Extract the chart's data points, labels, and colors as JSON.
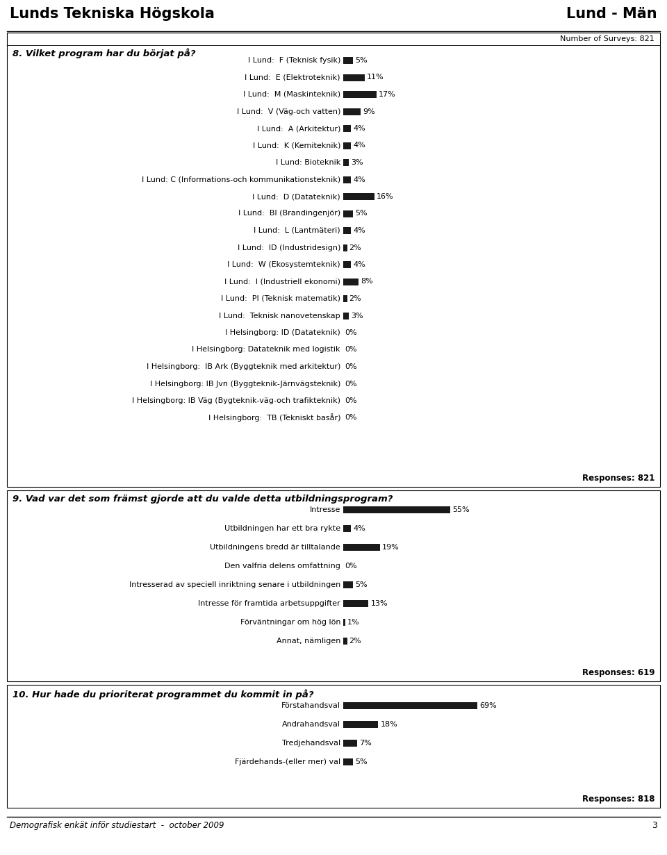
{
  "header_left": "Lunds Tekniska Högskola",
  "header_right": "Lund - Män",
  "footer_text": "Demografisk enkät inför studiestart  -  october 2009",
  "footer_page": "3",
  "q8_title": "8. Vilket program har du börjat på?",
  "q8_surveys": "Number of Surveys: 821",
  "q8_responses": "Responses: 821",
  "q8_labels": [
    "I Lund:  F (Teknisk fysik)",
    "I Lund:  E (Elektroteknik)",
    "I Lund:  M (Maskinteknik)",
    "I Lund:  V (Väg-och vatten)",
    "I Lund:  A (Arkitektur)",
    "I Lund:  K (Kemiteknik)",
    "I Lund: Bioteknik",
    "I Lund: C (Informations-och kommunikationsteknik)",
    "I Lund:  D (Datateknik)",
    "I Lund:  BI (Brandingenjör)",
    "I Lund:  L (Lantmäteri)",
    "I Lund:  ID (Industridesign)",
    "I Lund:  W (Ekosystemteknik)",
    "I Lund:  I (Industriell ekonomi)",
    "I Lund:  PI (Teknisk matematik)",
    "I Lund:  Teknisk nanovetenskap",
    "I Helsingborg: ID (Datateknik)",
    "I Helsingborg: Datateknik med logistik",
    "I Helsingborg:  IB Ark (Byggteknik med arkitektur)",
    "I Helsingborg: IB Jvn (Byggteknik-Järnvägsteknik)",
    "I Helsingborg: IB Väg (Bygteknik-väg-och trafikteknik)",
    "I Helsingborg:  TB (Tekniskt basår)"
  ],
  "q8_values": [
    5,
    11,
    17,
    9,
    4,
    4,
    3,
    4,
    16,
    5,
    4,
    2,
    4,
    8,
    2,
    3,
    0,
    0,
    0,
    0,
    0,
    0
  ],
  "q9_title": "9. Vad var det som främst gjorde att du valde detta utbildningsprogram?",
  "q9_responses": "Responses: 619",
  "q9_labels": [
    "Intresse",
    "Utbildningen har ett bra rykte",
    "Utbildningens bredd är tilltalande",
    "Den valfria delens omfattning",
    "Intresserad av speciell inriktning senare i utbildningen",
    "Intresse för framtida arbetsuppgifter",
    "Förväntningar om hög lön",
    "Annat, nämligen"
  ],
  "q9_values": [
    55,
    4,
    19,
    0,
    5,
    13,
    1,
    2
  ],
  "q10_title": "10. Hur hade du prioriterat programmet du kommit in på?",
  "q10_responses": "Responses: 818",
  "q10_labels": [
    "Förstahandsval",
    "Andrahandsval",
    "Tredjehandsval",
    "Fjärdehands-(eller mer) val"
  ],
  "q10_values": [
    69,
    18,
    7,
    5
  ],
  "bar_color": "#1a1a1a",
  "bg_color": "#ffffff",
  "label_fontsize": 8.0,
  "title_fontsize": 9.5,
  "header_fontsize": 15
}
